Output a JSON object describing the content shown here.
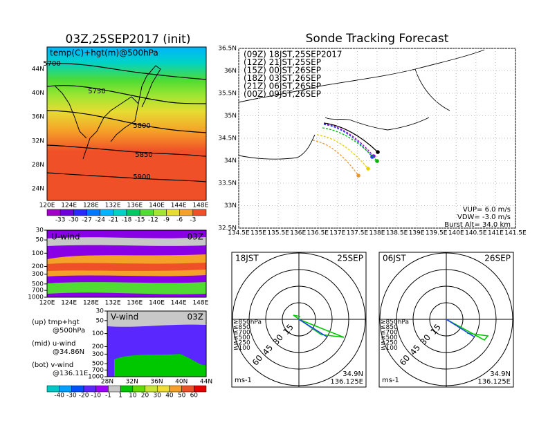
{
  "upper_map": {
    "title": "03Z,25SEP2017 (init)",
    "label": "temp(C)+hgt(m)@500hPa",
    "lat_ticks": [
      "44N",
      "40N",
      "36N",
      "32N",
      "28N",
      "24N"
    ],
    "lon_ticks": [
      "120E",
      "124E",
      "128E",
      "132E",
      "136E",
      "140E",
      "144E",
      "148E"
    ],
    "contour_labels": [
      5700,
      5750,
      5800,
      5850,
      5900
    ]
  },
  "temp_colorbar": {
    "ticks": [
      -33,
      -30,
      -27,
      -24,
      -21,
      -18,
      -15,
      -12,
      -9,
      -6,
      -3
    ],
    "colors": [
      "#a000c8",
      "#6e00dc",
      "#2828ff",
      "#0078ff",
      "#00b4ff",
      "#00d2c8",
      "#00c864",
      "#50dc32",
      "#a0e632",
      "#e6dc32",
      "#f5a028",
      "#f05028"
    ]
  },
  "u_wind": {
    "label": "U-wind",
    "time": "03Z",
    "levels": [
      30,
      50,
      100,
      200,
      300,
      500,
      700,
      1000
    ],
    "lon_ticks": [
      "120E",
      "124E",
      "128E",
      "132E",
      "136E",
      "140E",
      "144E",
      "148E"
    ]
  },
  "v_wind": {
    "label": "V-wind",
    "time": "03Z",
    "levels": [
      30,
      50,
      100,
      200,
      300,
      500,
      700,
      1000
    ],
    "lat_ticks": [
      "28N",
      "32N",
      "36N",
      "40N",
      "44N"
    ]
  },
  "panel_notes": [
    "(up) tmp+hgt",
    "@500hPa",
    "(mid) u-wind",
    "@34.86N",
    "(bot) v-wind",
    "@136.11E"
  ],
  "wind_colorbar": {
    "ticks": [
      -40,
      -30,
      -20,
      -10,
      -1,
      1,
      10,
      20,
      30,
      40,
      50,
      60
    ],
    "colors": [
      "#00c8c8",
      "#00a0ff",
      "#0050ff",
      "#5a28ff",
      "#a000ff",
      "#c8c8c8",
      "#00c800",
      "#64dc00",
      "#c8e632",
      "#f0dc32",
      "#f5a028",
      "#f05028",
      "#e60000"
    ]
  },
  "tracking": {
    "title": "Sonde Tracking Forecast",
    "lat_ticks": [
      "36.5N",
      "36N",
      "35.5N",
      "35N",
      "34.5N",
      "34N",
      "33.5N",
      "33N",
      "32.5N"
    ],
    "lon_ticks": [
      "134.5E",
      "135E",
      "135.5E",
      "136E",
      "136.5E",
      "137E",
      "137.5E",
      "138E",
      "138.5E",
      "139E",
      "139.5E",
      "140E",
      "140.5E",
      "141E",
      "141.5E"
    ],
    "launches": [
      {
        "label": "(09Z) 18JST,25SEP2017",
        "color": "#000000"
      },
      {
        "label": "(12Z) 21JST,25SEP",
        "color": "#a000c8"
      },
      {
        "label": "(15Z) 00JST,26SEP",
        "color": "#1e3cff"
      },
      {
        "label": "(18Z) 03JST,26SEP",
        "color": "#00b400"
      },
      {
        "label": "(21Z) 06JST,26SEP",
        "color": "#e6d200"
      },
      {
        "label": "(00Z) 09JST,26SEP",
        "color": "#f09628"
      }
    ],
    "settings": [
      "VUP= 6.0 m/s",
      "VDW= -3.0 m/s",
      "Burst Alt= 34.0 km"
    ]
  },
  "hodographs": [
    {
      "time": "18JST",
      "date": "25SEP",
      "lat": "34.9N",
      "lon": "136.125E"
    },
    {
      "time": "06JST",
      "date": "26SEP",
      "lat": "34.9N",
      "lon": "136.125E"
    }
  ],
  "hodograph_common": {
    "unit": "ms-1",
    "rings": [
      15,
      30,
      45,
      60
    ],
    "levels": [
      {
        "label": "≥850hPa",
        "color": "#f00000"
      },
      {
        "label": "≤850",
        "color": "#f09628"
      },
      {
        "label": "≤700",
        "color": "#e6d200"
      },
      {
        "label": "≤500",
        "color": "#00c800"
      },
      {
        "label": "≤250",
        "color": "#00b4e6"
      },
      {
        "label": "≤100",
        "color": "#1e3cff"
      }
    ]
  }
}
